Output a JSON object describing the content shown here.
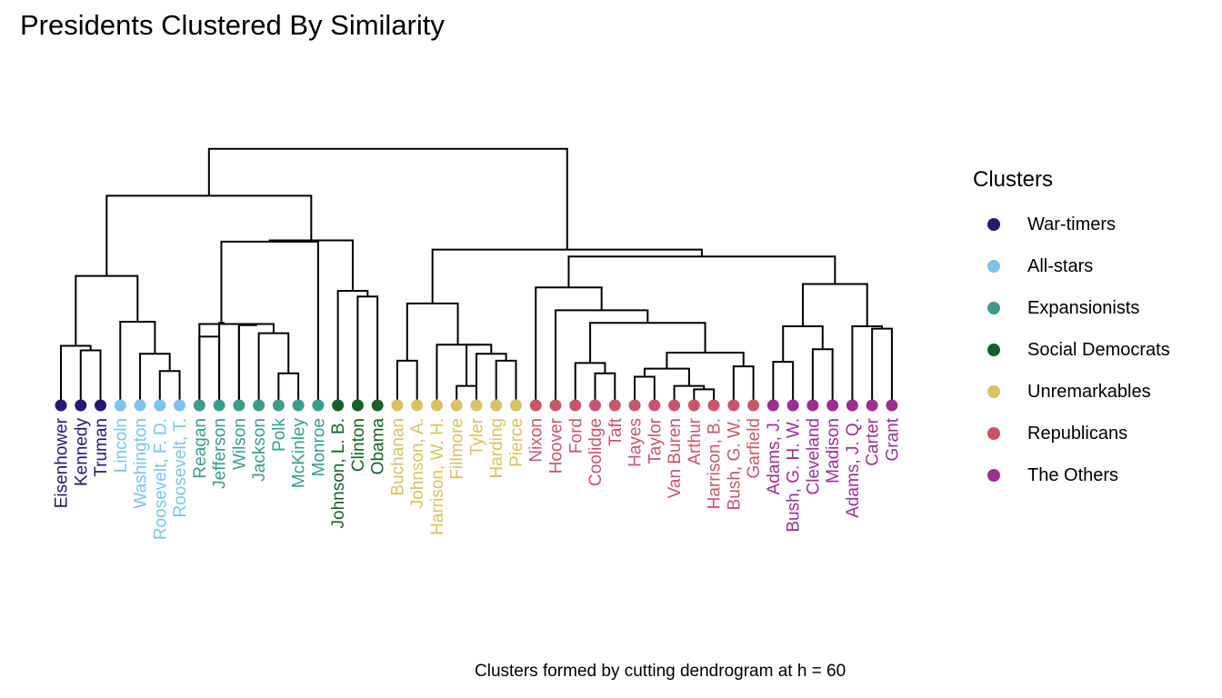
{
  "chart_data": {
    "type": "dendrogram",
    "title": "Presidents Clustered By Similarity",
    "caption": "Clusters formed by cutting dendrogram at h = 60",
    "legend": {
      "title": "Clusters",
      "placement": "right",
      "items": [
        {
          "label": "War-timers",
          "color": "#23196e"
        },
        {
          "label": "All-stars",
          "color": "#7dc4ec"
        },
        {
          "label": "Expansionists",
          "color": "#3a9d8c"
        },
        {
          "label": "Social Democrats",
          "color": "#14622a"
        },
        {
          "label": "Unremarkables",
          "color": "#d6c364"
        },
        {
          "label": "Republicans",
          "color": "#c8566a"
        },
        {
          "label": "The Others",
          "color": "#9d2f92"
        }
      ]
    },
    "leaves": [
      {
        "name": "Eisenhower",
        "cluster": 0
      },
      {
        "name": "Kennedy",
        "cluster": 0
      },
      {
        "name": "Truman",
        "cluster": 0
      },
      {
        "name": "Lincoln",
        "cluster": 1
      },
      {
        "name": "Washington",
        "cluster": 1
      },
      {
        "name": "Roosevelt, F. D.",
        "cluster": 1
      },
      {
        "name": "Roosevelt, T.",
        "cluster": 1
      },
      {
        "name": "Reagan",
        "cluster": 2
      },
      {
        "name": "Jefferson",
        "cluster": 2
      },
      {
        "name": "Wilson",
        "cluster": 2
      },
      {
        "name": "Jackson",
        "cluster": 2
      },
      {
        "name": "Polk",
        "cluster": 2
      },
      {
        "name": "McKinley",
        "cluster": 2
      },
      {
        "name": "Monroe",
        "cluster": 2
      },
      {
        "name": "Johnson, L. B.",
        "cluster": 3
      },
      {
        "name": "Clinton",
        "cluster": 3
      },
      {
        "name": "Obama",
        "cluster": 3
      },
      {
        "name": "Buchanan",
        "cluster": 4
      },
      {
        "name": "Johnson, A.",
        "cluster": 4
      },
      {
        "name": "Harrison, W. H.",
        "cluster": 4
      },
      {
        "name": "Fillmore",
        "cluster": 4
      },
      {
        "name": "Tyler",
        "cluster": 4
      },
      {
        "name": "Harding",
        "cluster": 4
      },
      {
        "name": "Pierce",
        "cluster": 4
      },
      {
        "name": "Nixon",
        "cluster": 5
      },
      {
        "name": "Hoover",
        "cluster": 5
      },
      {
        "name": "Ford",
        "cluster": 5
      },
      {
        "name": "Coolidge",
        "cluster": 5
      },
      {
        "name": "Taft",
        "cluster": 5
      },
      {
        "name": "Hayes",
        "cluster": 5
      },
      {
        "name": "Taylor",
        "cluster": 5
      },
      {
        "name": "Van Buren",
        "cluster": 5
      },
      {
        "name": "Arthur",
        "cluster": 5
      },
      {
        "name": "Harrison, B.",
        "cluster": 5
      },
      {
        "name": "Bush, G. W.",
        "cluster": 5
      },
      {
        "name": "Garfield",
        "cluster": 5
      },
      {
        "name": "Adams, J.",
        "cluster": 6
      },
      {
        "name": "Bush, G. H. W.",
        "cluster": 6
      },
      {
        "name": "Cleveland",
        "cluster": 6
      },
      {
        "name": "Madison",
        "cluster": 6
      },
      {
        "name": "Adams, J. Q.",
        "cluster": 6
      },
      {
        "name": "Carter",
        "cluster": 6
      },
      {
        "name": "Grant",
        "cluster": 6
      }
    ],
    "merges": [
      [
        -2,
        -3,
        48
      ],
      [
        -1,
        1,
        52
      ],
      [
        -6,
        -7,
        30
      ],
      [
        -5,
        3,
        45
      ],
      [
        -4,
        4,
        73
      ],
      [
        2,
        5,
        113
      ],
      [
        -12,
        -13,
        28
      ],
      [
        -11,
        7,
        63
      ],
      [
        -10,
        8,
        71
      ],
      [
        -8,
        -9,
        60
      ],
      [
        -10,
        9,
        70
      ],
      [
        -8,
        11,
        71
      ],
      [
        -9,
        12,
        72
      ],
      [
        -17,
        -16,
        95
      ],
      [
        -15,
        14,
        100
      ],
      [
        -14,
        13,
        143
      ],
      [
        16,
        15,
        144
      ],
      [
        6,
        17,
        183
      ],
      [
        -18,
        -19,
        39
      ],
      [
        -21,
        -22,
        17
      ],
      [
        -23,
        -24,
        39
      ],
      [
        -22,
        21,
        45
      ],
      [
        20,
        22,
        53
      ],
      [
        -20,
        23,
        53
      ],
      [
        19,
        24,
        89
      ],
      [
        -28,
        -29,
        28
      ],
      [
        -27,
        26,
        37
      ],
      [
        -33,
        -34,
        14
      ],
      [
        -32,
        28,
        17
      ],
      [
        -30,
        -31,
        25
      ],
      [
        30,
        29,
        32
      ],
      [
        -35,
        -36,
        34
      ],
      [
        31,
        32,
        46
      ],
      [
        27,
        33,
        72
      ],
      [
        -26,
        34,
        83
      ],
      [
        -25,
        35,
        103
      ],
      [
        -37,
        -38,
        38
      ],
      [
        -39,
        -40,
        49
      ],
      [
        37,
        38,
        69
      ],
      [
        -42,
        -43,
        67
      ],
      [
        -41,
        40,
        69
      ],
      [
        39,
        41,
        106
      ],
      [
        36,
        42,
        130
      ],
      [
        25,
        43,
        136
      ],
      [
        18,
        44,
        224
      ]
    ]
  }
}
